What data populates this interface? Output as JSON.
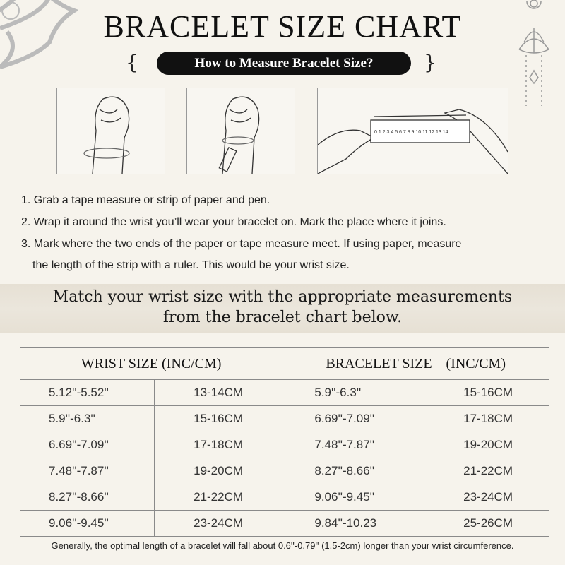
{
  "title": "BRACELET SIZE CHART",
  "subtitle": "How to Measure Bracelet Size?",
  "ruler_numbers": "0 1 2 3 4 5 6 7 8 9 10 11 12 13 14",
  "steps": [
    "1. Grab a tape measure or strip of paper and pen.",
    "2. Wrap it around the wrist you’ll wear your bracelet on. Mark the place where it joins.",
    "3. Mark where the two ends of the paper or tape measure meet. If using paper, measure",
    "the length of the strip with a ruler. This would be your wrist size."
  ],
  "match_text": [
    "Match your wrist size with the appropriate measurements",
    "from the bracelet chart below."
  ],
  "table": {
    "headers": [
      "WRIST SIZE (INC/CM)",
      "BRACELET SIZE    (INC/CM)"
    ],
    "rows": [
      [
        "5.12''-5.52''",
        "13-14CM",
        "5.9''-6.3''",
        "15-16CM"
      ],
      [
        "5.9''-6.3''",
        "15-16CM",
        "6.69''-7.09''",
        "17-18CM"
      ],
      [
        "6.69''-7.09''",
        "17-18CM",
        "7.48''-7.87''",
        "19-20CM"
      ],
      [
        "7.48''-7.87''",
        "19-20CM",
        "8.27''-8.66''",
        "21-22CM"
      ],
      [
        "8.27''-8.66''",
        "21-22CM",
        "9.06''-9.45''",
        "23-24CM"
      ],
      [
        "9.06''-9.45''",
        "23-24CM",
        "9.84''-10.23",
        "25-26CM"
      ]
    ]
  },
  "note": "Generally, the optimal length of a bracelet will fall about 0.6''-0.79'' (1.5-2cm) longer than your wrist circumference."
}
